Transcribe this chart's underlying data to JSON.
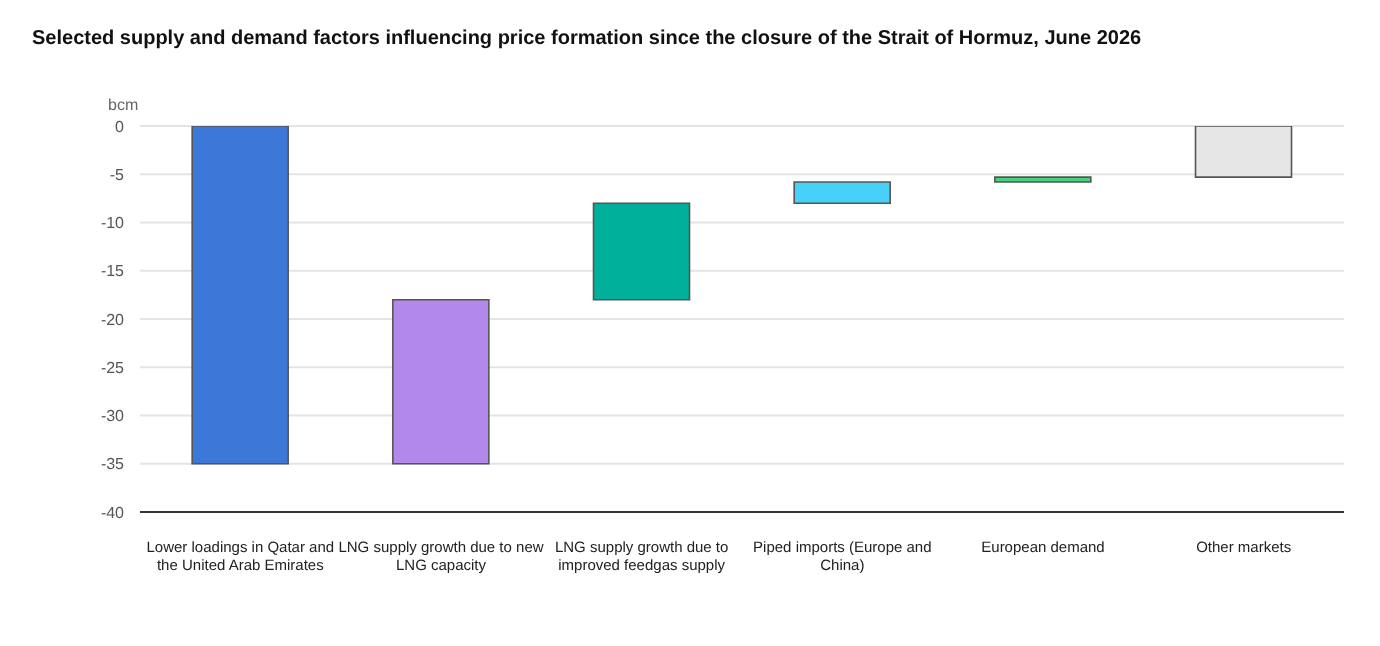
{
  "chart_data": {
    "type": "bar",
    "title": "Selected supply and demand factors influencing price formation since the closure of the Strait of Hormuz, June 2026",
    "ylabel": "bcm",
    "categories": [
      "Lower loadings in Qatar and the United Arab Emirates",
      "LNG supply growth due to new LNG capacity",
      "LNG supply growth due to improved feedgas supply",
      "Piped imports (Europe and China)",
      "European demand",
      "Other markets"
    ],
    "base": [
      0,
      -35,
      -18,
      -8,
      -5.8,
      0
    ],
    "values": [
      -35,
      17,
      10,
      2.2,
      0.5,
      -5.3
    ],
    "colors": [
      "#3c78d8",
      "#b388eb",
      "#00b09b",
      "#48d1f8",
      "#44d27f",
      "#e6e6e6"
    ],
    "ylim": [
      -40,
      0
    ],
    "yticks": [
      -40,
      -35,
      -30,
      -25,
      -20,
      -15,
      -10,
      -5,
      0
    ],
    "grid": "y"
  }
}
